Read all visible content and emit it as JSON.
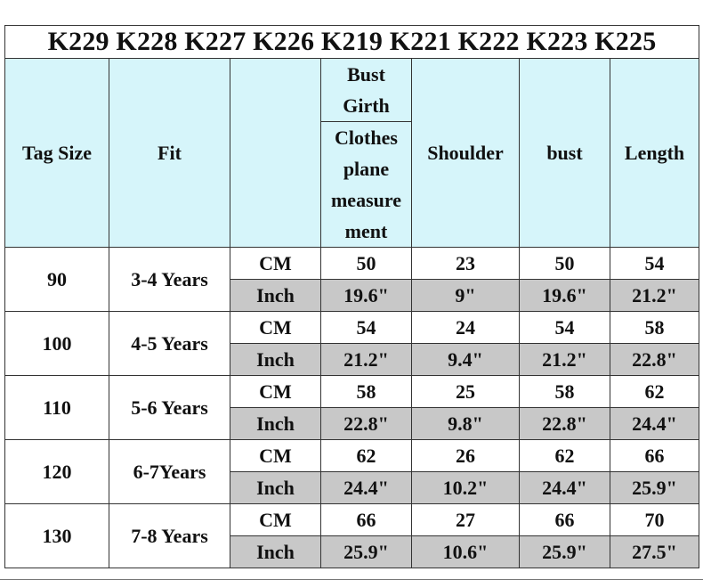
{
  "header": {
    "title": "K229 K228 K227 K226 K219 K221 K222 K223 K225"
  },
  "table": {
    "headers": {
      "tag_size": "Tag Size",
      "fit": "Fit",
      "bust_girth": "Bust Girth",
      "clothes_plane": "Clothes plane measurement",
      "shoulder": "Shoulder",
      "bust": "bust",
      "length": "Length"
    },
    "rows": [
      {
        "tag": 90,
        "fit": "3-4 Years",
        "cm": {
          "unit": "CM",
          "values": [
            50,
            23,
            50,
            54
          ]
        },
        "inch": {
          "unit": "Inch",
          "values": [
            "19.6\"",
            "9\"",
            "19.6\"",
            "21.2\""
          ]
        }
      },
      {
        "tag": 100,
        "fit": "4-5 Years",
        "cm": {
          "unit": "CM",
          "values": [
            54,
            24,
            54,
            58
          ]
        },
        "inch": {
          "unit": "Inch",
          "values": [
            "21.2\"",
            "9.4\"",
            "21.2\"",
            "22.8\""
          ]
        }
      },
      {
        "tag": 110,
        "fit": "5-6 Years",
        "cm": {
          "unit": "CM",
          "values": [
            58,
            25,
            58,
            62
          ]
        },
        "inch": {
          "unit": "Inch",
          "values": [
            "22.8\"",
            "9.8\"",
            "22.8\"",
            "24.4\""
          ]
        }
      },
      {
        "tag": 120,
        "fit": "6-7Years",
        "cm": {
          "unit": "CM",
          "values": [
            62,
            26,
            62,
            66
          ]
        },
        "inch": {
          "unit": "Inch",
          "values": [
            "24.4\"",
            "10.2\"",
            "24.4\"",
            "25.9\""
          ]
        }
      },
      {
        "tag": 130,
        "fit": "7-8 Years",
        "cm": {
          "unit": "CM",
          "values": [
            66,
            27,
            66,
            70
          ]
        },
        "inch": {
          "unit": "Inch",
          "values": [
            "25.9\"",
            "10.6\"",
            "25.9\"",
            "27.5\""
          ]
        }
      }
    ]
  }
}
